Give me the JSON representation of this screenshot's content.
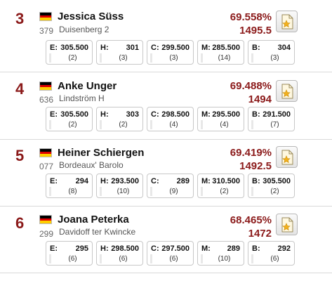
{
  "entries": [
    {
      "rank": "3",
      "name": "Jessica Süss",
      "number": "379",
      "horse": "Duisenberg 2",
      "percent": "69.558%",
      "points": "1495.5",
      "judges": [
        {
          "letter": "E:",
          "score": "305.500",
          "place": "(2)"
        },
        {
          "letter": "H:",
          "score": "301",
          "place": "(3)"
        },
        {
          "letter": "C:",
          "score": "299.500",
          "place": "(3)"
        },
        {
          "letter": "M:",
          "score": "285.500",
          "place": "(14)"
        },
        {
          "letter": "B:",
          "score": "304",
          "place": "(3)"
        }
      ]
    },
    {
      "rank": "4",
      "name": "Anke Unger",
      "number": "636",
      "horse": "Lindström H",
      "percent": "69.488%",
      "points": "1494",
      "judges": [
        {
          "letter": "E:",
          "score": "305.500",
          "place": "(2)"
        },
        {
          "letter": "H:",
          "score": "303",
          "place": "(2)"
        },
        {
          "letter": "C:",
          "score": "298.500",
          "place": "(4)"
        },
        {
          "letter": "M:",
          "score": "295.500",
          "place": "(4)"
        },
        {
          "letter": "B:",
          "score": "291.500",
          "place": "(7)"
        }
      ]
    },
    {
      "rank": "5",
      "name": "Heiner Schiergen",
      "number": "077",
      "horse": "Bordeaux' Barolo",
      "percent": "69.419%",
      "points": "1492.5",
      "judges": [
        {
          "letter": "E:",
          "score": "294",
          "place": "(8)"
        },
        {
          "letter": "H:",
          "score": "293.500",
          "place": "(10)"
        },
        {
          "letter": "C:",
          "score": "289",
          "place": "(9)"
        },
        {
          "letter": "M:",
          "score": "310.500",
          "place": "(2)"
        },
        {
          "letter": "B:",
          "score": "305.500",
          "place": "(2)"
        }
      ]
    },
    {
      "rank": "6",
      "name": "Joana Peterka",
      "number": "299",
      "horse": "Davidoff ter Kwincke",
      "percent": "68.465%",
      "points": "1472",
      "judges": [
        {
          "letter": "E:",
          "score": "295",
          "place": "(6)"
        },
        {
          "letter": "H:",
          "score": "298.500",
          "place": "(6)"
        },
        {
          "letter": "C:",
          "score": "297.500",
          "place": "(6)"
        },
        {
          "letter": "M:",
          "score": "289",
          "place": "(10)"
        },
        {
          "letter": "B:",
          "score": "292",
          "place": "(6)"
        }
      ]
    }
  ],
  "icons": {
    "flag": "german-flag-icon",
    "details": "score-sheet-icon"
  },
  "colors": {
    "accent": "#8b1a1a"
  }
}
